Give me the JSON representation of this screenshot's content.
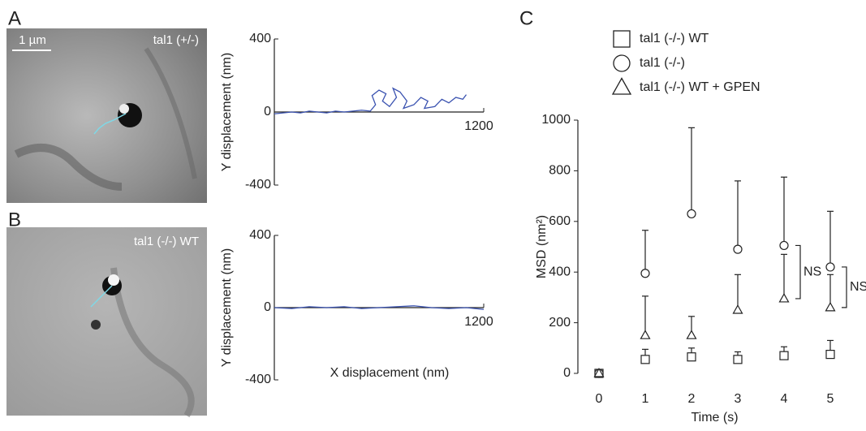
{
  "panel_labels": [
    "A",
    "B",
    "C"
  ],
  "images": [
    {
      "label": "tal1  (+/-)",
      "scale_bar": "1 µm"
    },
    {
      "label": "tal1  (-/-) WT"
    }
  ],
  "chart_data": [
    {
      "type": "line",
      "ylabel": "Y displacement (nm)",
      "xlim": [
        0,
        1200
      ],
      "xticks": [
        1200
      ],
      "ylim": [
        -400,
        400
      ],
      "yticks": [
        400,
        0,
        -400
      ],
      "series": [
        {
          "color": "#3a52b0",
          "x": [
            0,
            50,
            100,
            150,
            200,
            250,
            300,
            350,
            400,
            450,
            500,
            550,
            580,
            560,
            600,
            640,
            620,
            660,
            700,
            680,
            720,
            760,
            740,
            800,
            840,
            880,
            860,
            920,
            960,
            1000,
            1040,
            1080,
            1100
          ],
          "values": [
            -10,
            -5,
            0,
            -5,
            5,
            0,
            -5,
            5,
            0,
            5,
            10,
            5,
            40,
            90,
            120,
            100,
            60,
            30,
            80,
            130,
            110,
            60,
            20,
            40,
            80,
            60,
            20,
            30,
            70,
            50,
            80,
            70,
            95
          ]
        }
      ]
    },
    {
      "type": "line",
      "ylabel": "Y displacement (nm)",
      "xlabel": "X displacement (nm)",
      "xlim": [
        0,
        1200
      ],
      "xticks": [
        1200
      ],
      "ylim": [
        -400,
        400
      ],
      "yticks": [
        400,
        0,
        -400
      ],
      "series": [
        {
          "color": "#3a52b0",
          "x": [
            0,
            100,
            200,
            300,
            400,
            500,
            600,
            700,
            800,
            900,
            1000,
            1100,
            1200
          ],
          "values": [
            0,
            -5,
            5,
            0,
            5,
            -5,
            0,
            5,
            10,
            0,
            -5,
            0,
            -10
          ]
        }
      ]
    },
    {
      "type": "scatter",
      "ylabel": "MSD (nm²)",
      "xlabel": "Time (s)",
      "x": [
        0,
        1,
        2,
        3,
        4,
        5
      ],
      "xlim": [
        0,
        5
      ],
      "xticks": [
        0,
        1,
        2,
        3,
        4,
        5
      ],
      "ylim": [
        0,
        1000
      ],
      "yticks": [
        0,
        200,
        400,
        600,
        800,
        1000
      ],
      "series": [
        {
          "name": "tal1  (-/-) WT",
          "marker": "square",
          "color": "#222222",
          "values": [
            0,
            55,
            65,
            55,
            70,
            75
          ],
          "errors": [
            0,
            40,
            35,
            30,
            35,
            55
          ]
        },
        {
          "name": "tal1  (-/-)",
          "marker": "circle",
          "color": "#222222",
          "values": [
            0,
            395,
            630,
            490,
            505,
            420
          ],
          "errors": [
            0,
            170,
            340,
            270,
            270,
            220
          ]
        },
        {
          "name": "tal1  (-/-) WT + GPEN",
          "marker": "triangle",
          "color": "#222222",
          "values": [
            0,
            150,
            150,
            250,
            295,
            260
          ],
          "errors": [
            0,
            155,
            75,
            140,
            175,
            130
          ]
        }
      ],
      "annotations": [
        {
          "text": "NS",
          "x": 4
        },
        {
          "text": "NS",
          "x": 5
        }
      ]
    }
  ]
}
